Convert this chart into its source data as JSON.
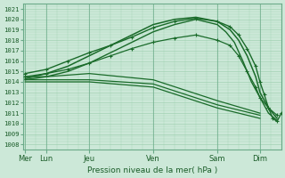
{
  "title": "Pression niveau de la mer( hPa )",
  "ylabel_values": [
    1008,
    1009,
    1010,
    1011,
    1012,
    1013,
    1014,
    1015,
    1016,
    1017,
    1018,
    1019,
    1020,
    1021
  ],
  "ylim": [
    1007.5,
    1021.5
  ],
  "bg_color": "#cce8d8",
  "grid_color": "#99ccaa",
  "line_color": "#1a6b2a",
  "title_color": "#1a5c28",
  "x_tick_positions": [
    0.0,
    0.5,
    1.5,
    3.0,
    4.5,
    5.5
  ],
  "x_tick_labels": [
    "Mer",
    "Lun",
    "Jeu",
    "Ven",
    "Sam",
    "Dim"
  ],
  "xlim": [
    -0.05,
    6.0
  ],
  "series": [
    {
      "x": [
        0.0,
        0.5,
        1.0,
        1.5,
        2.0,
        2.5,
        3.0,
        3.5,
        4.0,
        4.5,
        4.8,
        5.0,
        5.2,
        5.4,
        5.5,
        5.7,
        5.9
      ],
      "y": [
        1014.5,
        1014.8,
        1015.2,
        1015.8,
        1016.5,
        1017.2,
        1017.8,
        1018.2,
        1018.5,
        1018.0,
        1017.5,
        1016.5,
        1015.0,
        1013.5,
        1012.5,
        1011.5,
        1010.8
      ],
      "marker": true
    },
    {
      "x": [
        0.0,
        0.5,
        1.0,
        1.5,
        2.0,
        2.5,
        3.0,
        3.5,
        4.0,
        4.5,
        4.8,
        5.0,
        5.2,
        5.4,
        5.5,
        5.7,
        5.9
      ],
      "y": [
        1014.3,
        1014.8,
        1015.5,
        1016.5,
        1017.5,
        1018.5,
        1019.5,
        1020.0,
        1020.2,
        1019.8,
        1019.0,
        1018.0,
        1016.5,
        1014.5,
        1013.0,
        1011.5,
        1010.5
      ],
      "marker": false
    },
    {
      "x": [
        0.0,
        0.5,
        1.0,
        1.5,
        2.0,
        2.5,
        3.0,
        3.5,
        4.0,
        4.5,
        4.7,
        4.9,
        5.1,
        5.3,
        5.5,
        5.7,
        5.9
      ],
      "y": [
        1014.2,
        1014.5,
        1015.0,
        1015.8,
        1016.8,
        1017.8,
        1018.8,
        1019.5,
        1020.0,
        1019.5,
        1018.8,
        1017.8,
        1016.0,
        1014.0,
        1012.5,
        1011.0,
        1010.3
      ],
      "marker": false
    },
    {
      "x": [
        0.0,
        0.5,
        1.5,
        3.0,
        4.5,
        5.5
      ],
      "y": [
        1014.0,
        1014.0,
        1014.0,
        1013.5,
        1011.5,
        1010.5
      ],
      "marker": false
    },
    {
      "x": [
        0.0,
        0.5,
        1.5,
        3.0,
        4.5,
        5.5
      ],
      "y": [
        1014.2,
        1014.2,
        1014.2,
        1013.8,
        1011.8,
        1010.8
      ],
      "marker": false
    },
    {
      "x": [
        0.0,
        0.5,
        1.5,
        3.0,
        4.5,
        5.5
      ],
      "y": [
        1014.5,
        1014.5,
        1014.8,
        1014.2,
        1012.2,
        1011.0
      ],
      "marker": false
    },
    {
      "x": [
        0.0,
        0.5,
        1.0,
        1.5,
        2.0,
        2.5,
        3.0,
        3.5,
        4.0,
        4.5,
        4.8,
        5.0,
        5.2,
        5.4,
        5.5,
        5.6,
        5.7,
        5.8,
        5.9,
        6.0
      ],
      "y": [
        1014.8,
        1015.2,
        1016.0,
        1016.8,
        1017.5,
        1018.3,
        1019.2,
        1019.8,
        1020.1,
        1019.8,
        1019.3,
        1018.5,
        1017.2,
        1015.5,
        1014.0,
        1012.8,
        1011.5,
        1010.5,
        1010.2,
        1011.0
      ],
      "marker": true
    }
  ],
  "sep_lines_x": [
    0.0,
    0.5,
    1.5,
    3.0,
    4.5,
    5.5
  ]
}
